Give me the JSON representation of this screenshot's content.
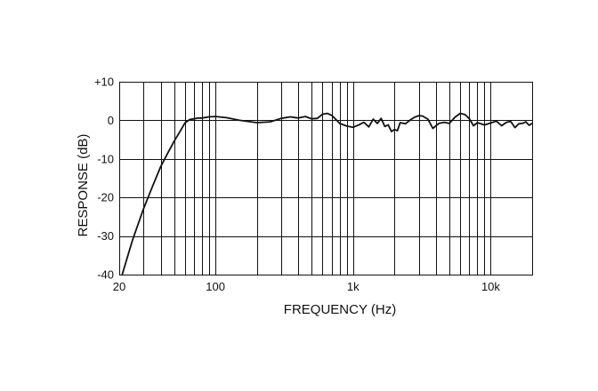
{
  "chart_data": {
    "type": "line",
    "xlabel": "FREQUENCY (Hz)",
    "ylabel": "RESPONSE (dB)",
    "xscale": "log",
    "xlim": [
      20,
      20000
    ],
    "ylim": [
      -40,
      10
    ],
    "grid": true,
    "x_ticks": [
      {
        "value": 20,
        "label": "20"
      },
      {
        "value": 100,
        "label": "100"
      },
      {
        "value": 1000,
        "label": "1k"
      },
      {
        "value": 10000,
        "label": "10k"
      }
    ],
    "y_ticks": [
      {
        "value": 10,
        "label": "+10"
      },
      {
        "value": 0,
        "label": "0"
      },
      {
        "value": -10,
        "label": "-10"
      },
      {
        "value": -20,
        "label": "-20"
      },
      {
        "value": -30,
        "label": "-30"
      },
      {
        "value": -40,
        "label": "-40"
      }
    ],
    "series": [
      {
        "x": [
          21,
          25,
          30,
          35,
          40,
          45,
          50,
          55,
          60,
          65,
          70,
          75,
          80,
          90,
          100,
          120,
          150,
          200,
          250,
          300,
          350,
          400,
          450,
          500,
          550,
          600,
          650,
          700,
          750,
          800,
          900,
          1000,
          1100,
          1200,
          1300,
          1400,
          1500,
          1600,
          1700,
          1800,
          1900,
          2000,
          2100,
          2200,
          2400,
          2600,
          2800,
          3000,
          3200,
          3500,
          3800,
          4200,
          4600,
          5000,
          5500,
          6000,
          6500,
          7000,
          7500,
          8000,
          9000,
          10000,
          11000,
          12000,
          13000,
          14000,
          15000,
          16000,
          17000,
          18000,
          19000,
          20000
        ],
        "y": [
          -40,
          -31,
          -23,
          -17,
          -12,
          -8.5,
          -5.5,
          -3,
          -0.7,
          0.2,
          0.4,
          0.6,
          0.6,
          0.9,
          1,
          0.7,
          0,
          -0.6,
          -0.4,
          0.5,
          0.9,
          0.6,
          1,
          0.4,
          0.5,
          1.6,
          1.8,
          1.3,
          0.2,
          -0.8,
          -1.5,
          -1.8,
          -1.2,
          -0.5,
          -1.7,
          0.3,
          -0.8,
          0.5,
          -1.6,
          -1.2,
          -2.9,
          -2.4,
          -2.7,
          -0.6,
          -0.9,
          0.1,
          0.8,
          1.2,
          1.1,
          0.3,
          -2.1,
          -0.8,
          -0.5,
          -0.8,
          0.8,
          1.8,
          1.5,
          0.4,
          -1.4,
          -0.6,
          -1.2,
          -0.7,
          -0.2,
          -1.4,
          -0.5,
          -0.3,
          -1.9,
          -0.9,
          -0.8,
          -0.4,
          -1.3,
          -0.8
        ]
      }
    ]
  }
}
